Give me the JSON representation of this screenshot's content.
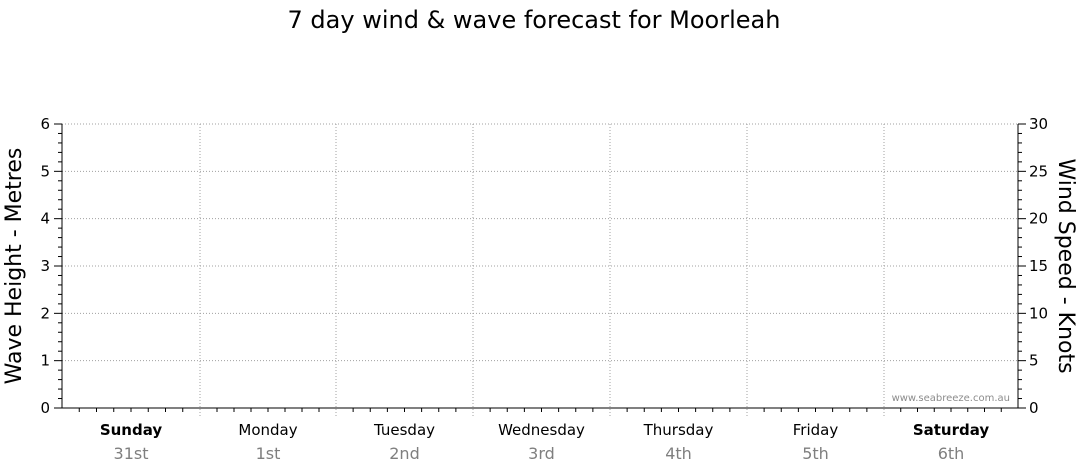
{
  "chart_data": {
    "type": "line",
    "title": "7 day wind & wave forecast for Moorleah",
    "y_left": {
      "label": "Wave Height - Metres",
      "range": [
        0,
        6
      ],
      "ticks": [
        "0",
        "1",
        "2",
        "3",
        "4",
        "5",
        "6"
      ]
    },
    "y_right": {
      "label": "Wind Speed - Knots",
      "range": [
        0,
        30
      ],
      "ticks": [
        "0",
        "5",
        "10",
        "15",
        "20",
        "25",
        "30"
      ]
    },
    "grid": true,
    "days": [
      {
        "name": "Sunday",
        "date": "31st",
        "bold": true
      },
      {
        "name": "Monday",
        "date": "1st",
        "bold": false
      },
      {
        "name": "Tuesday",
        "date": "2nd",
        "bold": false
      },
      {
        "name": "Wednesday",
        "date": "3rd",
        "bold": false
      },
      {
        "name": "Thursday",
        "date": "4th",
        "bold": false
      },
      {
        "name": "Friday",
        "date": "5th",
        "bold": false
      },
      {
        "name": "Saturday",
        "date": "6th",
        "bold": true
      }
    ],
    "series": []
  },
  "watermark": "www.seabreeze.com.au"
}
